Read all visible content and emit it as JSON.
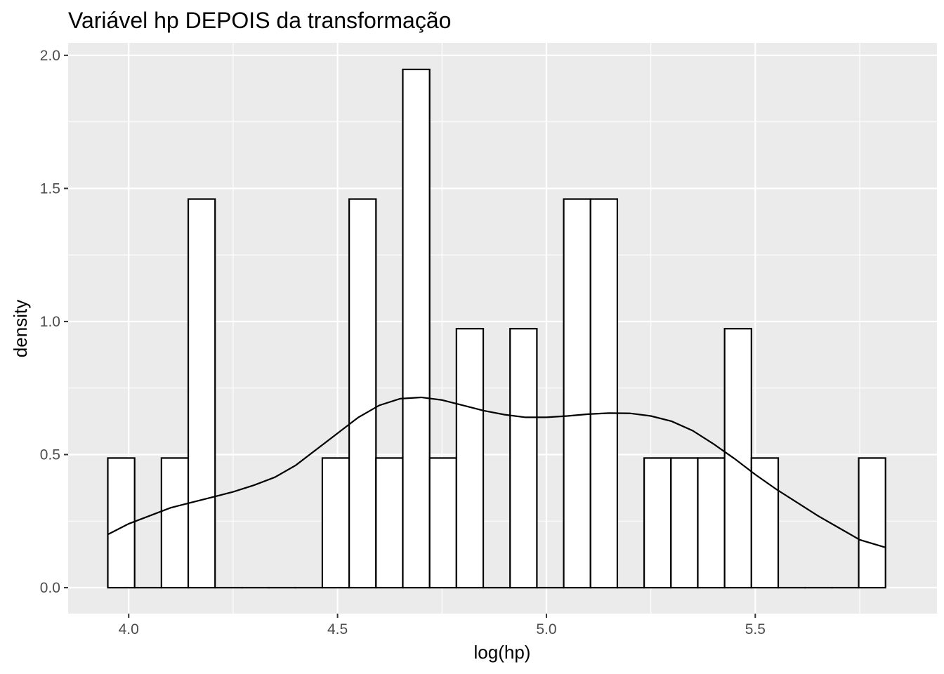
{
  "chart_data": {
    "type": "histogram",
    "title": "Variável hp DEPOIS da transformação",
    "xlabel": "log(hp)",
    "ylabel": "density",
    "xlim": [
      3.855,
      5.935
    ],
    "ylim": [
      -0.0975,
      2.047
    ],
    "x_ticks": [
      4.0,
      4.5,
      5.0,
      5.5
    ],
    "x_tick_labels": [
      "4.0",
      "4.5",
      "5.0",
      "5.5"
    ],
    "y_ticks": [
      0.0,
      0.5,
      1.0,
      1.5,
      2.0
    ],
    "y_tick_labels": [
      "0.0",
      "0.5",
      "1.0",
      "1.5",
      "2.0"
    ],
    "bin_start": 3.95,
    "bin_width": 0.0642,
    "densities": [
      0.487,
      0,
      0.487,
      1.46,
      0,
      0,
      0,
      0,
      0.487,
      1.46,
      0.487,
      1.947,
      0.487,
      0.973,
      0,
      0.973,
      0,
      1.46,
      1.46,
      0,
      0.487,
      0.487,
      0.487,
      0.973,
      0.487,
      0,
      0,
      0,
      0.487
    ],
    "density_curve": {
      "x": [
        3.95,
        4.0,
        4.05,
        4.1,
        4.15,
        4.2,
        4.25,
        4.3,
        4.35,
        4.4,
        4.45,
        4.5,
        4.55,
        4.6,
        4.65,
        4.7,
        4.75,
        4.8,
        4.85,
        4.9,
        4.95,
        5.0,
        5.05,
        5.1,
        5.15,
        5.2,
        5.25,
        5.3,
        5.35,
        5.4,
        5.45,
        5.5,
        5.55,
        5.6,
        5.65,
        5.7,
        5.75,
        5.81
      ],
      "y": [
        0.2,
        0.24,
        0.27,
        0.3,
        0.32,
        0.34,
        0.36,
        0.385,
        0.415,
        0.46,
        0.52,
        0.58,
        0.64,
        0.685,
        0.71,
        0.715,
        0.705,
        0.685,
        0.665,
        0.65,
        0.64,
        0.64,
        0.645,
        0.652,
        0.656,
        0.655,
        0.645,
        0.625,
        0.59,
        0.54,
        0.485,
        0.425,
        0.37,
        0.32,
        0.27,
        0.225,
        0.18,
        0.152
      ]
    },
    "grid": true,
    "panel_background": "#ebebeb",
    "grid_color": "#ffffff",
    "bar_fill": "#ffffff",
    "bar_outline": "#000000"
  }
}
